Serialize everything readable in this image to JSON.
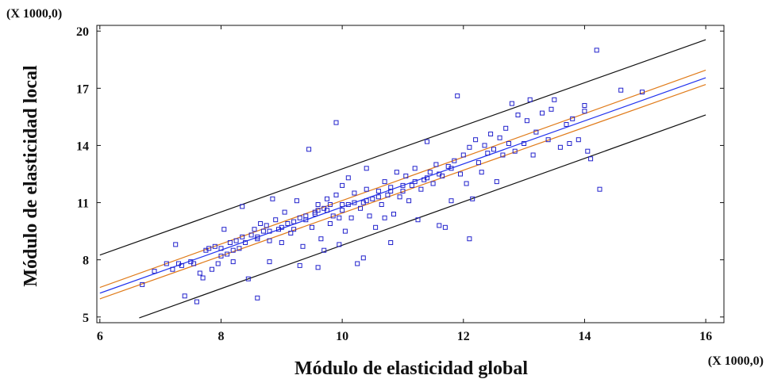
{
  "chart_data": {
    "type": "scatter",
    "xlabel": "Módulo de elasticidad global",
    "ylabel": "Módulo de elasticidad local",
    "x_multiplier_label": "(X 1000,0)",
    "y_multiplier_label": "(X 1000,0)",
    "xlim": [
      5.95,
      16.3
    ],
    "ylim": [
      4.7,
      20.3
    ],
    "xticks": [
      6,
      8,
      10,
      12,
      14,
      16
    ],
    "yticks": [
      5,
      8,
      11,
      14,
      17,
      20
    ],
    "grid": false,
    "colors": {
      "points": "#2222cc",
      "fit": "#2233ee",
      "confidence": "#e07b1a",
      "prediction": "#111111",
      "axis": "#111111"
    },
    "fit_line": {
      "name": "",
      "x": [
        6,
        16
      ],
      "y": [
        6.25,
        17.55
      ]
    },
    "confidence_upper": {
      "name": "",
      "x": [
        6,
        16
      ],
      "y": [
        6.55,
        17.95
      ]
    },
    "confidence_lower": {
      "name": "",
      "x": [
        6,
        16
      ],
      "y": [
        5.95,
        17.2
      ]
    },
    "prediction_upper": {
      "name": "",
      "x": [
        6,
        16
      ],
      "y": [
        8.25,
        19.55
      ]
    },
    "prediction_lower": {
      "name": "",
      "x": [
        6.65,
        16
      ],
      "y": [
        4.95,
        15.6
      ]
    },
    "points": [
      [
        6.7,
        6.7
      ],
      [
        6.9,
        7.4
      ],
      [
        7.1,
        7.8
      ],
      [
        7.2,
        7.5
      ],
      [
        7.25,
        8.8
      ],
      [
        7.3,
        7.8
      ],
      [
        7.35,
        7.7
      ],
      [
        7.4,
        6.1
      ],
      [
        7.5,
        7.9
      ],
      [
        7.55,
        7.8
      ],
      [
        7.6,
        5.8
      ],
      [
        7.65,
        7.3
      ],
      [
        7.7,
        7.05
      ],
      [
        7.75,
        8.5
      ],
      [
        7.8,
        8.6
      ],
      [
        7.85,
        7.5
      ],
      [
        7.9,
        8.7
      ],
      [
        7.95,
        7.8
      ],
      [
        8.0,
        8.2
      ],
      [
        8.0,
        8.6
      ],
      [
        8.05,
        9.6
      ],
      [
        8.1,
        8.3
      ],
      [
        8.15,
        8.9
      ],
      [
        8.2,
        7.9
      ],
      [
        8.2,
        8.5
      ],
      [
        8.25,
        9.0
      ],
      [
        8.3,
        8.6
      ],
      [
        8.35,
        9.2
      ],
      [
        8.35,
        10.8
      ],
      [
        8.4,
        8.9
      ],
      [
        8.45,
        7.0
      ],
      [
        8.5,
        9.3
      ],
      [
        8.55,
        9.6
      ],
      [
        8.6,
        6.0
      ],
      [
        8.6,
        9.1
      ],
      [
        8.65,
        9.9
      ],
      [
        8.7,
        9.5
      ],
      [
        8.75,
        9.8
      ],
      [
        8.8,
        7.9
      ],
      [
        8.8,
        9.0
      ],
      [
        8.85,
        11.2
      ],
      [
        8.9,
        10.1
      ],
      [
        8.95,
        9.6
      ],
      [
        9.0,
        8.9
      ],
      [
        9.05,
        10.5
      ],
      [
        9.1,
        9.9
      ],
      [
        9.15,
        9.4
      ],
      [
        9.2,
        10.0
      ],
      [
        9.25,
        11.1
      ],
      [
        9.3,
        7.7
      ],
      [
        9.3,
        10.2
      ],
      [
        9.35,
        8.7
      ],
      [
        9.4,
        10.3
      ],
      [
        9.45,
        13.8
      ],
      [
        9.5,
        9.7
      ],
      [
        9.55,
        10.5
      ],
      [
        9.6,
        10.9
      ],
      [
        9.6,
        7.6
      ],
      [
        9.65,
        9.1
      ],
      [
        9.7,
        8.5
      ],
      [
        9.7,
        10.7
      ],
      [
        9.75,
        11.2
      ],
      [
        9.8,
        9.9
      ],
      [
        9.85,
        10.3
      ],
      [
        9.9,
        11.4
      ],
      [
        9.9,
        15.2
      ],
      [
        9.95,
        8.8
      ],
      [
        10.0,
        10.6
      ],
      [
        10.0,
        11.9
      ],
      [
        10.05,
        9.5
      ],
      [
        10.1,
        10.9
      ],
      [
        10.1,
        12.3
      ],
      [
        10.15,
        10.2
      ],
      [
        10.2,
        11.5
      ],
      [
        10.25,
        7.8
      ],
      [
        10.3,
        10.7
      ],
      [
        10.35,
        11.0
      ],
      [
        10.35,
        8.1
      ],
      [
        10.4,
        12.8
      ],
      [
        10.4,
        11.7
      ],
      [
        10.45,
        10.3
      ],
      [
        10.5,
        11.2
      ],
      [
        10.55,
        9.7
      ],
      [
        10.6,
        11.6
      ],
      [
        10.65,
        10.9
      ],
      [
        10.7,
        12.1
      ],
      [
        10.7,
        10.2
      ],
      [
        10.75,
        11.4
      ],
      [
        10.8,
        8.9
      ],
      [
        10.8,
        11.8
      ],
      [
        10.85,
        10.4
      ],
      [
        10.9,
        12.6
      ],
      [
        10.95,
        11.3
      ],
      [
        11.0,
        11.6
      ],
      [
        11.05,
        12.4
      ],
      [
        11.1,
        11.1
      ],
      [
        11.15,
        11.9
      ],
      [
        11.2,
        12.8
      ],
      [
        11.25,
        10.1
      ],
      [
        11.3,
        11.7
      ],
      [
        11.35,
        12.2
      ],
      [
        11.4,
        14.2
      ],
      [
        11.45,
        12.6
      ],
      [
        11.5,
        12.0
      ],
      [
        11.55,
        13.0
      ],
      [
        11.6,
        9.8
      ],
      [
        11.65,
        12.4
      ],
      [
        11.7,
        9.7
      ],
      [
        11.75,
        12.9
      ],
      [
        11.8,
        11.1
      ],
      [
        11.85,
        13.2
      ],
      [
        11.9,
        16.6
      ],
      [
        11.95,
        12.5
      ],
      [
        12.0,
        13.5
      ],
      [
        12.05,
        12.0
      ],
      [
        12.1,
        9.1
      ],
      [
        12.1,
        13.9
      ],
      [
        12.15,
        11.2
      ],
      [
        12.2,
        14.3
      ],
      [
        12.25,
        13.1
      ],
      [
        12.3,
        12.6
      ],
      [
        12.35,
        14.0
      ],
      [
        12.4,
        13.6
      ],
      [
        12.45,
        14.6
      ],
      [
        12.5,
        13.8
      ],
      [
        12.55,
        12.1
      ],
      [
        12.6,
        14.4
      ],
      [
        12.65,
        13.5
      ],
      [
        12.7,
        14.9
      ],
      [
        12.75,
        14.1
      ],
      [
        12.8,
        16.2
      ],
      [
        12.85,
        13.7
      ],
      [
        12.9,
        15.6
      ],
      [
        13.0,
        14.1
      ],
      [
        13.05,
        15.3
      ],
      [
        13.1,
        16.4
      ],
      [
        13.15,
        13.5
      ],
      [
        13.2,
        14.7
      ],
      [
        13.3,
        15.7
      ],
      [
        13.4,
        14.3
      ],
      [
        13.45,
        15.9
      ],
      [
        13.5,
        16.4
      ],
      [
        13.6,
        13.9
      ],
      [
        13.7,
        15.1
      ],
      [
        13.75,
        14.1
      ],
      [
        13.8,
        15.4
      ],
      [
        13.9,
        14.3
      ],
      [
        14.0,
        15.8
      ],
      [
        14.0,
        16.1
      ],
      [
        14.05,
        13.7
      ],
      [
        14.1,
        13.3
      ],
      [
        14.2,
        19.0
      ],
      [
        14.25,
        11.7
      ],
      [
        14.6,
        16.9
      ],
      [
        14.95,
        16.8
      ],
      [
        9.0,
        9.7
      ],
      [
        9.2,
        9.6
      ],
      [
        9.4,
        10.1
      ],
      [
        9.6,
        10.6
      ],
      [
        9.8,
        10.9
      ],
      [
        10.0,
        10.9
      ],
      [
        10.2,
        11.0
      ],
      [
        10.4,
        11.1
      ],
      [
        10.6,
        11.3
      ],
      [
        10.8,
        11.6
      ],
      [
        11.0,
        11.9
      ],
      [
        11.2,
        12.1
      ],
      [
        11.4,
        12.3
      ],
      [
        11.6,
        12.5
      ],
      [
        11.8,
        12.8
      ],
      [
        8.6,
        9.2
      ],
      [
        8.8,
        9.5
      ],
      [
        9.55,
        10.4
      ],
      [
        9.75,
        10.6
      ],
      [
        9.95,
        10.2
      ]
    ]
  }
}
